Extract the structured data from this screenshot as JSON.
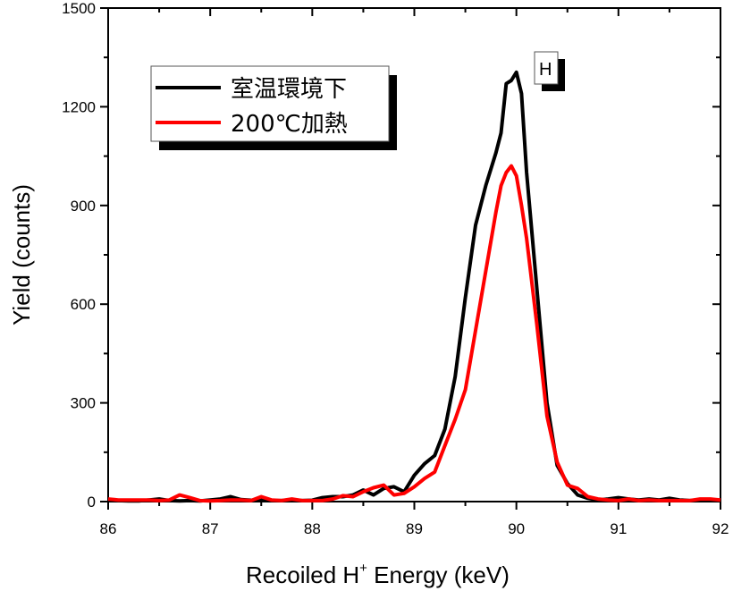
{
  "chart_data": {
    "type": "line",
    "title": "",
    "xlabel_main": "Recoiled H",
    "xlabel_sup": "+",
    "xlabel_tail": " Energy (keV)",
    "ylabel": "Yield (counts)",
    "xlim": [
      86,
      92
    ],
    "ylim": [
      0,
      1500
    ],
    "x_ticks": [
      86,
      87,
      88,
      89,
      90,
      91,
      92
    ],
    "x_tick_labels": [
      "86",
      "87",
      "88",
      "89",
      "90",
      "91",
      "92"
    ],
    "y_ticks": [
      0,
      300,
      600,
      900,
      1200,
      1500
    ],
    "y_tick_labels": [
      "0",
      "300",
      "600",
      "900",
      "1200",
      "1500"
    ],
    "grid": false,
    "legend": {
      "position": "top-left",
      "entries": [
        {
          "label": "室温環境下",
          "color": "#000000"
        },
        {
          "label": "200℃加熱",
          "color": "#ff0000"
        }
      ]
    },
    "annotations": [
      {
        "text": "H",
        "x": 90.15,
        "y": 1300
      }
    ],
    "series": [
      {
        "name": "室温環境下",
        "color": "#000000",
        "x": [
          86.0,
          86.1,
          86.2,
          86.3,
          86.4,
          86.5,
          86.6,
          86.7,
          86.8,
          86.9,
          87.0,
          87.1,
          87.2,
          87.3,
          87.4,
          87.5,
          87.6,
          87.7,
          87.8,
          87.9,
          88.0,
          88.1,
          88.2,
          88.3,
          88.4,
          88.5,
          88.6,
          88.7,
          88.8,
          88.9,
          89.0,
          89.1,
          89.2,
          89.3,
          89.4,
          89.5,
          89.6,
          89.7,
          89.8,
          89.85,
          89.9,
          89.95,
          90.0,
          90.05,
          90.1,
          90.2,
          90.3,
          90.4,
          90.5,
          90.6,
          90.7,
          90.8,
          90.9,
          91.0,
          91.1,
          91.2,
          91.3,
          91.4,
          91.5,
          91.6,
          91.7,
          91.8,
          91.9,
          92.0
        ],
        "y": [
          5,
          3,
          2,
          2,
          5,
          8,
          3,
          2,
          3,
          2,
          5,
          8,
          15,
          6,
          4,
          5,
          3,
          3,
          5,
          3,
          4,
          12,
          15,
          15,
          20,
          35,
          20,
          40,
          45,
          30,
          80,
          115,
          140,
          220,
          380,
          620,
          840,
          960,
          1060,
          1120,
          1270,
          1280,
          1305,
          1240,
          1000,
          650,
          300,
          110,
          55,
          20,
          10,
          5,
          8,
          12,
          8,
          5,
          8,
          5,
          10,
          5,
          3,
          5,
          3,
          3
        ]
      },
      {
        "name": "200℃加熱",
        "color": "#ff0000",
        "x": [
          86.0,
          86.1,
          86.2,
          86.3,
          86.4,
          86.5,
          86.6,
          86.7,
          86.8,
          86.9,
          87.0,
          87.1,
          87.2,
          87.3,
          87.4,
          87.5,
          87.6,
          87.7,
          87.8,
          87.9,
          88.0,
          88.1,
          88.2,
          88.3,
          88.4,
          88.5,
          88.6,
          88.7,
          88.8,
          88.9,
          89.0,
          89.1,
          89.2,
          89.3,
          89.4,
          89.5,
          89.6,
          89.7,
          89.8,
          89.85,
          89.9,
          89.95,
          90.0,
          90.05,
          90.1,
          90.2,
          90.3,
          90.4,
          90.5,
          90.6,
          90.7,
          90.8,
          90.9,
          91.0,
          91.1,
          91.2,
          91.3,
          91.4,
          91.5,
          91.6,
          91.7,
          91.8,
          91.9,
          92.0
        ],
        "y": [
          8,
          5,
          5,
          5,
          5,
          3,
          5,
          20,
          12,
          3,
          2,
          3,
          5,
          5,
          3,
          15,
          5,
          3,
          8,
          3,
          3,
          3,
          8,
          18,
          15,
          30,
          42,
          50,
          20,
          25,
          45,
          70,
          90,
          170,
          250,
          340,
          520,
          700,
          880,
          960,
          1000,
          1020,
          990,
          900,
          800,
          540,
          260,
          120,
          50,
          40,
          15,
          8,
          5,
          3,
          8,
          3,
          5,
          3,
          3,
          3,
          3,
          8,
          8,
          5
        ]
      }
    ]
  }
}
